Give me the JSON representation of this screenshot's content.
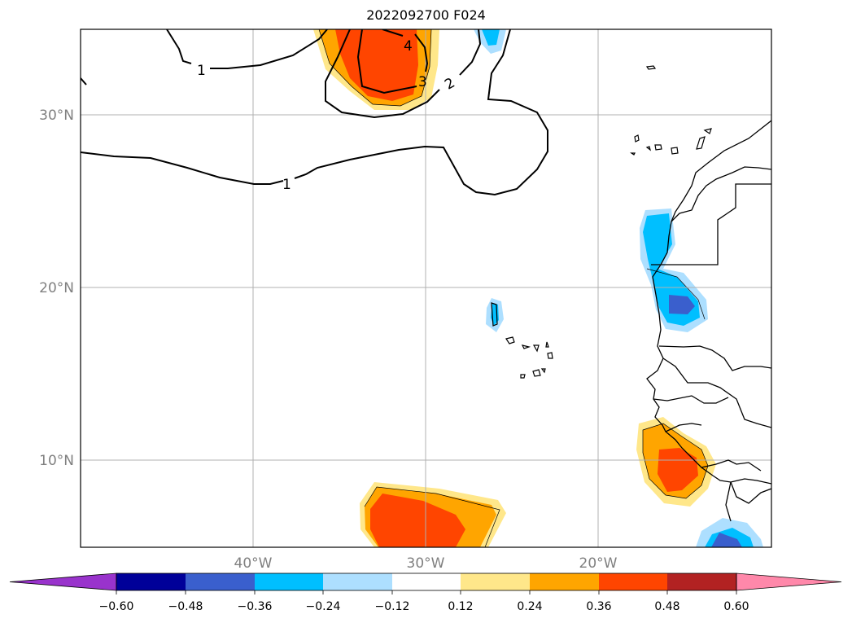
{
  "title": "2022092700 F024",
  "map": {
    "lat_ticks": [
      "30°N",
      "20°N",
      "10°N"
    ],
    "lon_ticks": [
      "40°W",
      "30°W",
      "20°W"
    ],
    "grid": true
  },
  "contour_labels": [
    "1",
    "1",
    "2",
    "3",
    "4"
  ],
  "colorbar": {
    "ticks": [
      "−0.60",
      "−0.48",
      "−0.36",
      "−0.24",
      "−0.12",
      "0.12",
      "0.24",
      "0.36",
      "0.48",
      "0.60"
    ],
    "colors": [
      "#9933cc",
      "#000099",
      "#3a5fcd",
      "#00bfff",
      "#addfff",
      "#ffffff",
      "#ffe78a",
      "#ffa500",
      "#ff4500",
      "#b22222",
      "#ff88aa"
    ],
    "extend": "both"
  },
  "palette": {
    "light_yellow": "#ffe78a",
    "orange": "#ffa500",
    "red_orange": "#ff4500",
    "light_blue": "#addfff",
    "deep_sky_blue": "#00bfff",
    "royal_blue": "#3a5fcd"
  }
}
